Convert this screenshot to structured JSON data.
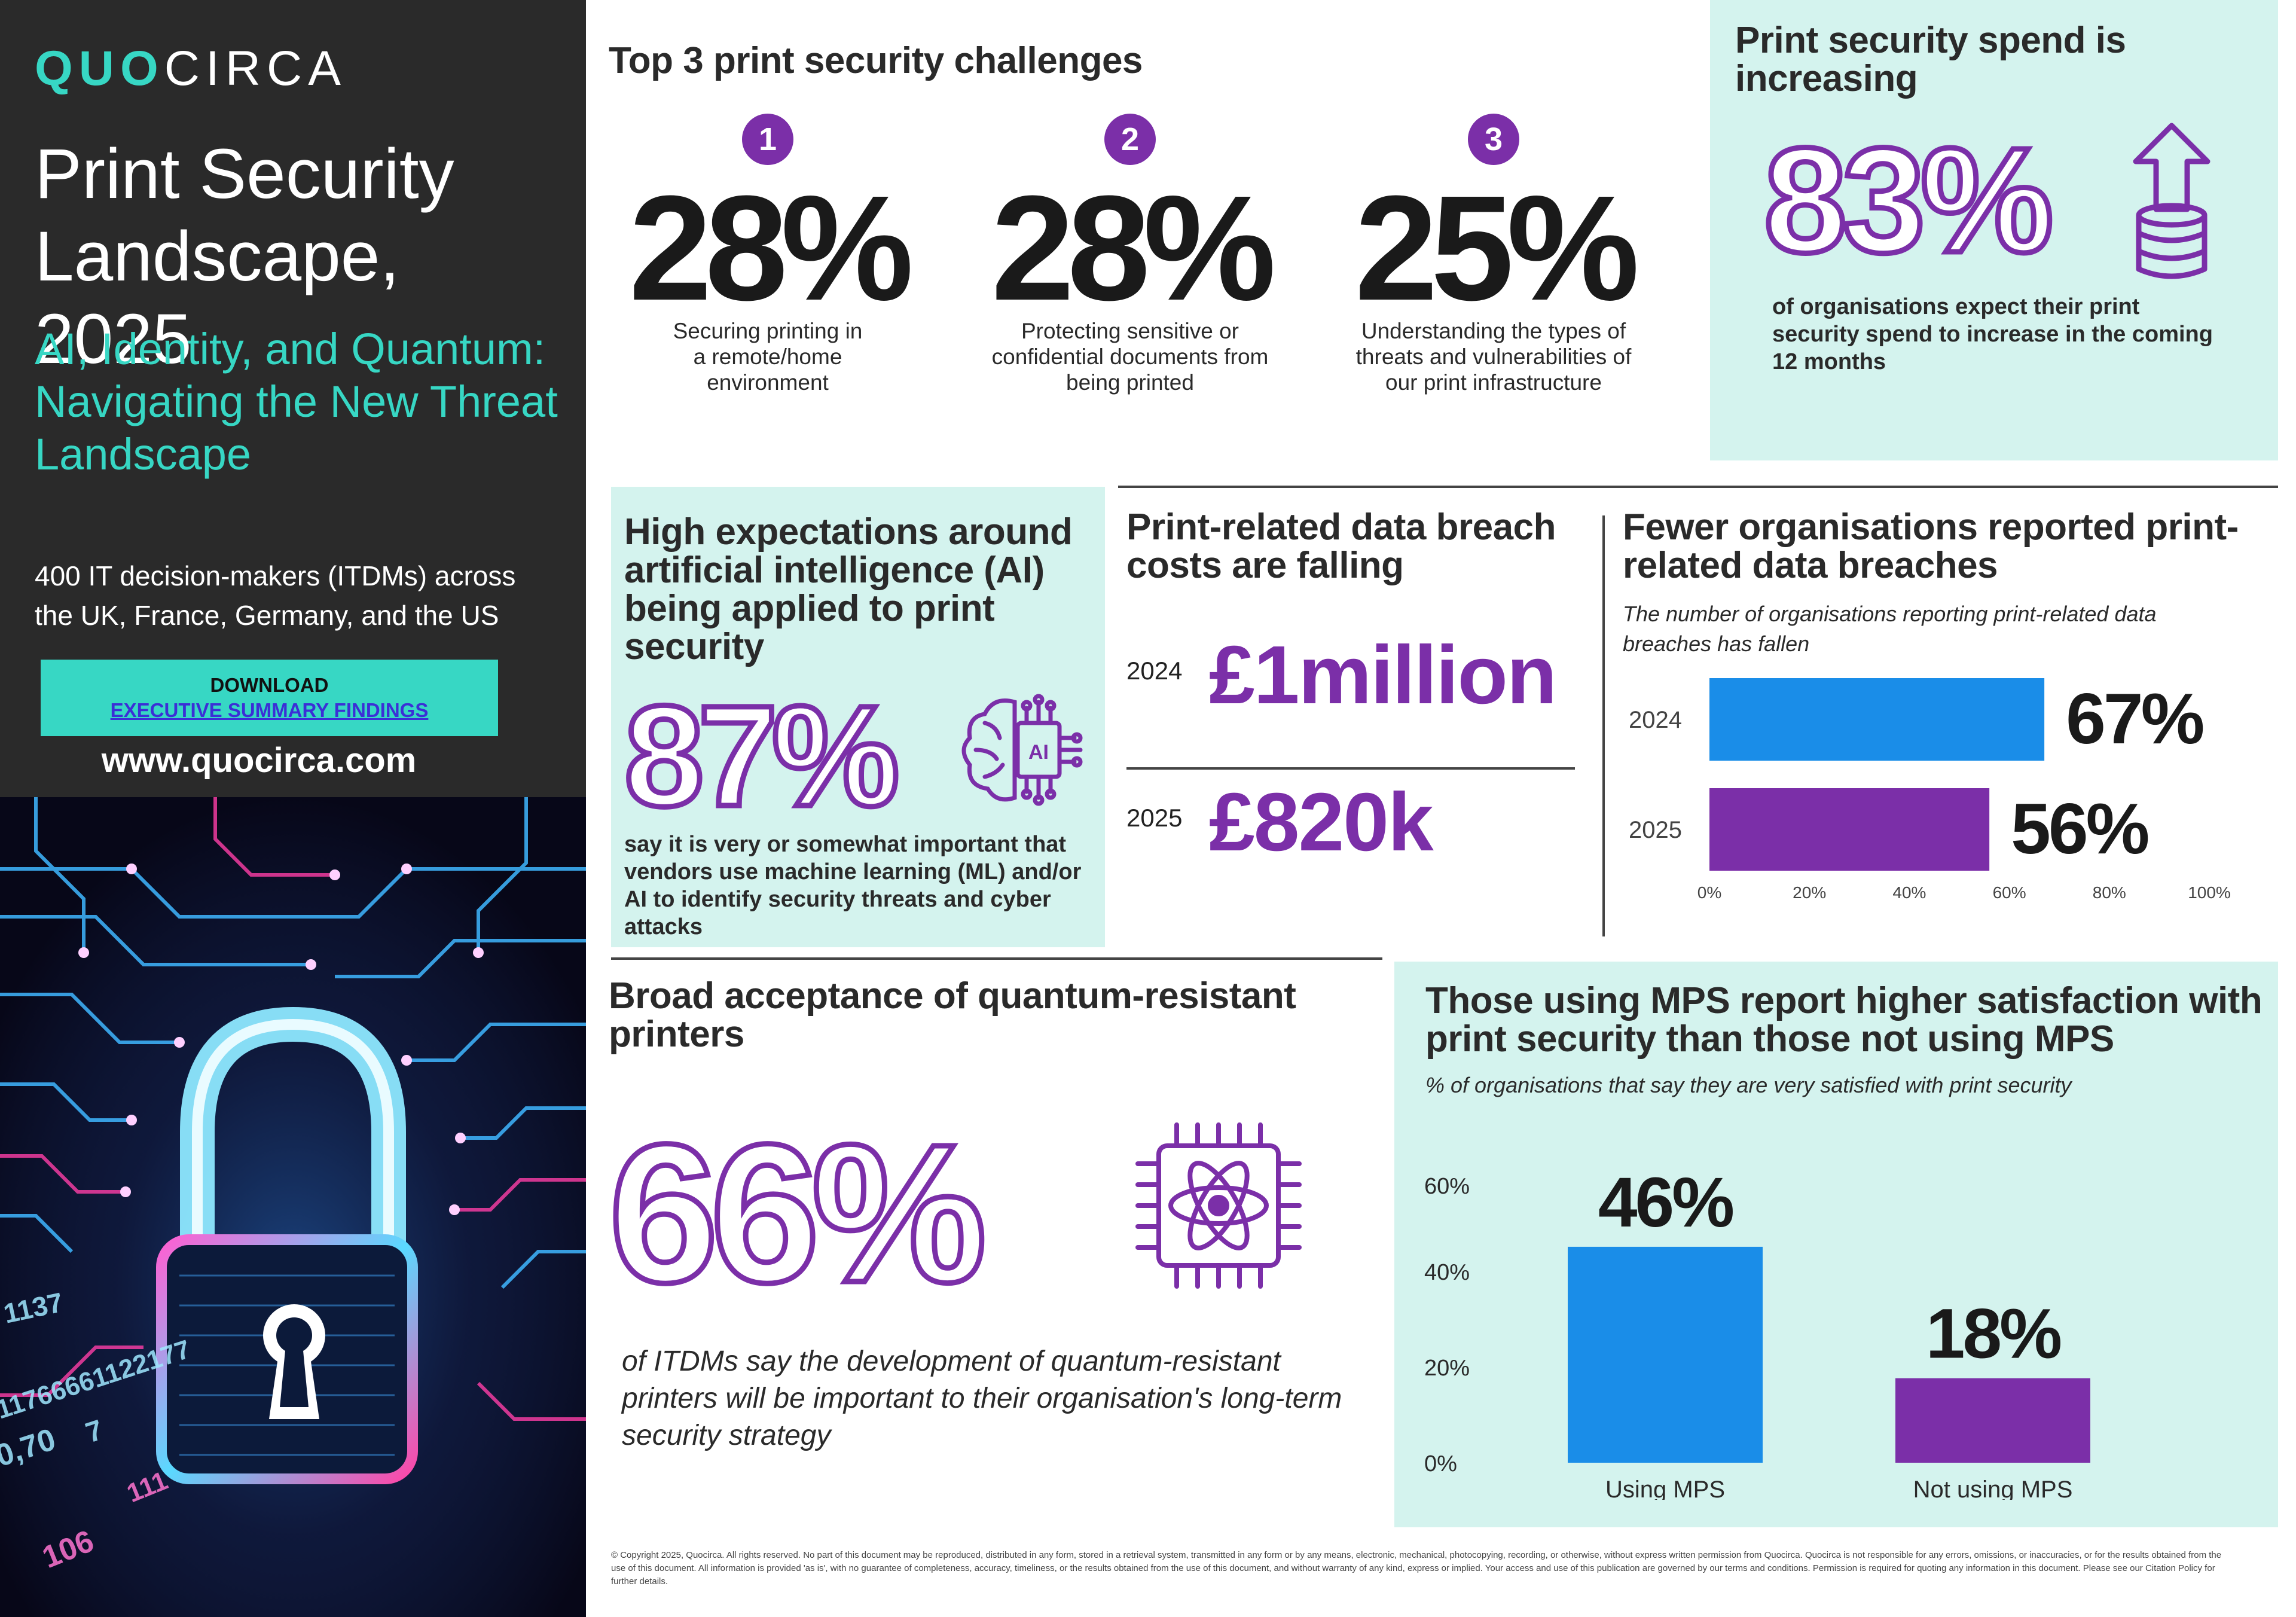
{
  "brand": {
    "logo_a": "QUO",
    "logo_b": "CIRCA",
    "website": "www.quocirca.com"
  },
  "report": {
    "title": "Print Security Landscape, 2025",
    "subtitle": "AI, Identity, and Quantum: Navigating the New Threat Landscape",
    "audience": "400 IT decision-makers (ITDMs) across the UK, France, Germany, and the US"
  },
  "download": {
    "line1": "DOWNLOAD",
    "line2": "EXECUTIVE SUMMARY FINDINGS"
  },
  "top3": {
    "title": "Top 3 print security challenges",
    "items": [
      {
        "rank": "1",
        "value": "28%",
        "desc": "Securing printing in a remote/home environment"
      },
      {
        "rank": "2",
        "value": "28%",
        "desc": "Protecting sensitive or confidential documents from being printed"
      },
      {
        "rank": "3",
        "value": "25%",
        "desc": "Understanding the types of threats and vulnerabilities of our print infrastructure"
      }
    ]
  },
  "spend": {
    "title": "Print security spend is increasing",
    "value": "83%",
    "text": "of organisations expect their print security spend to increase in the coming 12 months",
    "icon": "coin-stack-up-arrow-icon"
  },
  "ai": {
    "title": "High expectations around artificial intelligence (AI) being applied to print security",
    "value": "87%",
    "text": "say it is very or somewhat important that vendors use machine learning (ML) and/or AI to identify security threats and cyber attacks",
    "icon": "ai-brain-chip-icon",
    "icon_label": "AI"
  },
  "cost": {
    "title": "Print-related data breach costs are falling",
    "rows": [
      {
        "year": "2024",
        "value": "£1million"
      },
      {
        "year": "2025",
        "value": "£820k"
      }
    ]
  },
  "fewer": {
    "title": "Fewer organisations reported print-related data breaches",
    "note": "The number of organisations reporting print-related data breaches has fallen"
  },
  "quantum": {
    "title": "Broad acceptance of quantum-resistant printers",
    "value": "66%",
    "text": "of ITDMs say the development of quantum-resistant printers will be important to their organisation's long-term security strategy",
    "icon": "atom-chip-icon"
  },
  "mps": {
    "title": "Those using MPS report higher satisfaction with print security than those not using MPS",
    "note": "% of organisations that say they are very satisfied with print security"
  },
  "colors": {
    "purple": "#7b2fa8",
    "blue": "#1a8de8",
    "teal": "#37d7c4",
    "mint": "#d4f3ee",
    "dark": "#2a2a2a"
  },
  "hero_text": [
    "1137",
    "11766661122177",
    "0,70",
    "7",
    "111",
    "106"
  ],
  "copyright": "© Copyright 2025, Quocirca. All rights reserved. No part of this document may be reproduced, distributed in any form, stored in a retrieval system, transmitted in any form or by any means, electronic, mechanical, photocopying, recording, or otherwise, without express written permission from Quocirca. Quocirca is not responsible for any errors, omissions, or inaccuracies, or for the results obtained from the use of this document. All information is provided 'as is', with no guarantee of completeness, accuracy, timeliness, or the results obtained from the use of this document, and without warranty of any kind, express or implied. Your access and use of this publication are governed by our terms and conditions. Permission is required for quoting any information in this document. Please see our Citation Policy for further details.",
  "chart_data": [
    {
      "type": "bar",
      "orientation": "horizontal",
      "title": "Fewer organisations reported print-related data breaches",
      "categories": [
        "2024",
        "2025"
      ],
      "values": [
        67,
        56
      ],
      "value_labels": [
        "67%",
        "56%"
      ],
      "colors": [
        "#1a8de8",
        "#7b2fa8"
      ],
      "xlim": [
        0,
        100
      ],
      "x_ticks": [
        "0%",
        "20%",
        "40%",
        "60%",
        "80%",
        "100%"
      ],
      "grid": false,
      "legend": "none"
    },
    {
      "type": "bar",
      "orientation": "vertical",
      "title": "Those using MPS report higher satisfaction with print security than those not using MPS",
      "categories": [
        "Using MPS",
        "Not using MPS"
      ],
      "values": [
        46,
        18
      ],
      "value_labels": [
        "46%",
        "18%"
      ],
      "colors": [
        "#1a8de8",
        "#7b2fa8"
      ],
      "ylim": [
        0,
        60
      ],
      "y_ticks": [
        "0%",
        "20%",
        "40%",
        "60%"
      ],
      "grid": false,
      "legend": "none"
    }
  ]
}
